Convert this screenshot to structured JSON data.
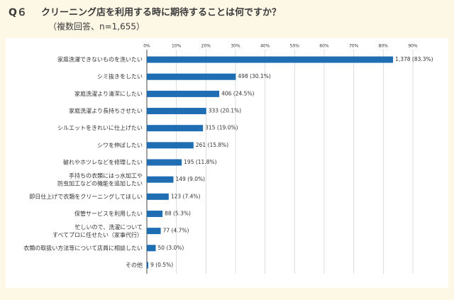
{
  "chart_data": {
    "type": "hbar",
    "question_number": "Q６",
    "title": "クリーニング店を利用する時に期待することは何ですか？",
    "subtitle": "（複数回答、n=1,655）",
    "categories": [
      "家庭洗濯できないものを洗いたい",
      "シミ抜きをしたい",
      "家庭洗濯より清潔にしたい",
      "家庭洗濯より長持ちさせたい",
      "シルエットをきれいに仕上げたい",
      "シワを伸ばしたい",
      "破れやホツレなどを修理したい",
      "手持ちの衣類にはっ水加工や\n防虫加工などの機能を追加したい",
      "即日仕上げで衣類をクリーニングしてほしい",
      "保管サービスを利用したい",
      "忙しいので、洗濯について\nすべてプロに任せたい（家事代行）",
      "衣類の取扱い方法等について店員に相談したい",
      "その他"
    ],
    "values": [
      83.3,
      30.1,
      24.5,
      20.1,
      19.0,
      15.8,
      11.8,
      9.0,
      7.4,
      5.3,
      4.7,
      3.0,
      0.5
    ],
    "value_labels": [
      "1,378 (83.3%)",
      "498 (30.1%)",
      "406 (24.5%)",
      "333 (20.1%)",
      "315 (19.0%)",
      "261 (15.8%)",
      "195 (11.8%)",
      "149 (9.0%)",
      "123 (7.4%)",
      "88 (5.3%)",
      "77 (4.7%)",
      "50 (3.0%)",
      "9 (0.5%)"
    ],
    "color": "#1f6db3",
    "xlim": [
      0,
      90
    ],
    "xticks": [
      {
        "value": 0,
        "label": "0%"
      },
      {
        "value": 10,
        "label": "10%"
      },
      {
        "value": 20,
        "label": "20%"
      },
      {
        "value": 30,
        "label": "30%"
      },
      {
        "value": 40,
        "label": "40%"
      },
      {
        "value": 50,
        "label": "50%"
      },
      {
        "value": 60,
        "label": "60%"
      },
      {
        "value": 70,
        "label": "70%"
      },
      {
        "value": 80,
        "label": "80%"
      },
      {
        "value": 90,
        "label": "90%"
      }
    ],
    "grid": true
  }
}
